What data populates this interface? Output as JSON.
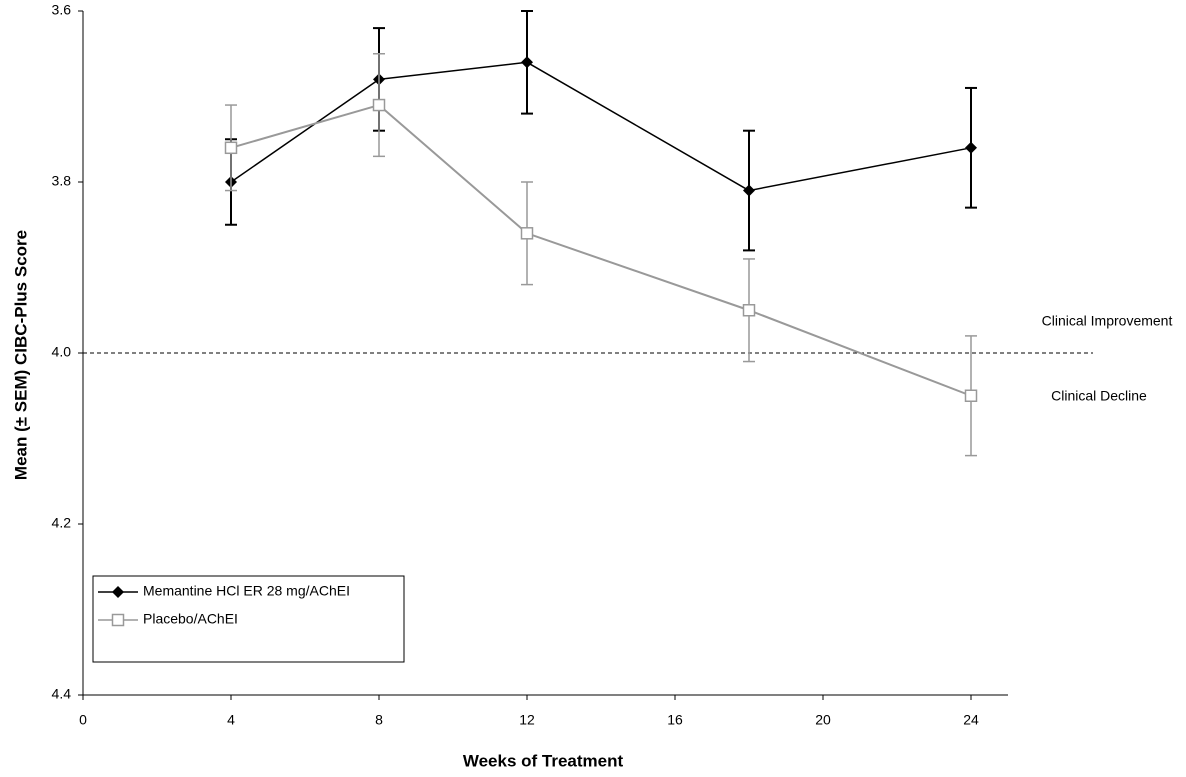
{
  "chart_data": {
    "type": "line",
    "x_label": "Weeks of Treatment",
    "y_label": "Mean (± SEM) CIBC-Plus Score",
    "x": [
      4,
      8,
      12,
      18,
      24
    ],
    "series": [
      {
        "name": "Memantine HCl ER 28 mg/AChEI",
        "color": "#000000",
        "marker": "diamond",
        "values": [
          3.8,
          3.68,
          3.66,
          3.81,
          3.76
        ],
        "errors": [
          0.05,
          0.06,
          0.06,
          0.07,
          0.07
        ]
      },
      {
        "name": "Placebo/AChEI",
        "color": "#999999",
        "marker": "open-square",
        "values": [
          3.76,
          3.71,
          3.86,
          3.95,
          4.05
        ],
        "errors": [
          0.05,
          0.06,
          0.06,
          0.06,
          0.07
        ]
      }
    ],
    "xlim": [
      0,
      25
    ],
    "xticks": [
      0,
      4,
      8,
      12,
      16,
      20,
      24
    ],
    "ylim": [
      3.6,
      4.4
    ],
    "y_inverted": true,
    "yticks": [
      3.6,
      3.8,
      {
        "value": 4,
        "label": "4.0"
      },
      4.2,
      4.4
    ],
    "reference_line": 4,
    "annotations": [
      "Clinical Improvement",
      "Clinical Decline"
    ],
    "legend": "lower left",
    "grid": false
  }
}
